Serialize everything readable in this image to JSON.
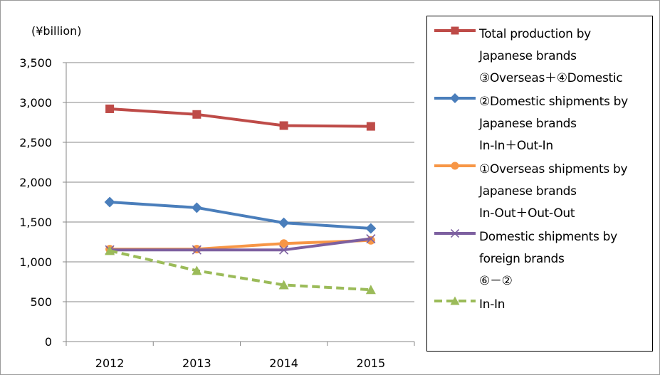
{
  "chart_data": {
    "type": "line",
    "unit_label": "(¥billion)",
    "categories": [
      "2012",
      "2013",
      "2014",
      "2015"
    ],
    "ylim": [
      0,
      3500
    ],
    "yticks": [
      0,
      500,
      1000,
      1500,
      2000,
      2500,
      3000,
      3500
    ],
    "ytick_labels": [
      "0",
      "500",
      "1,000",
      "1,500",
      "2,000",
      "2,500",
      "3,000",
      "3,500"
    ],
    "grid": true,
    "legend_position": "right",
    "series": [
      {
        "name": "Total production  by\nJapanese brands\n③Overseas＋④Domestic",
        "values": [
          2920,
          2850,
          2710,
          2700
        ],
        "color": "#be4b48",
        "marker": "square",
        "dashed": false
      },
      {
        "name": "②Domestic shipments by\nJapanese brands\nIn-In＋Out-In",
        "values": [
          1750,
          1680,
          1490,
          1420
        ],
        "color": "#4a7ebb",
        "marker": "diamond",
        "dashed": false
      },
      {
        "name": "①Overseas shipments by\nJapanese brands\nIn-Out＋Out-Out",
        "values": [
          1160,
          1160,
          1230,
          1270
        ],
        "color": "#f79646",
        "marker": "circle",
        "dashed": false
      },
      {
        "name": "Domestic shipments by\nforeign brands\n⑥－②",
        "values": [
          1150,
          1150,
          1150,
          1290
        ],
        "color": "#7d60a0",
        "marker": "x",
        "dashed": false
      },
      {
        "name": "In-In",
        "values": [
          1140,
          890,
          710,
          650
        ],
        "color": "#9bbb59",
        "marker": "triangle",
        "dashed": true
      }
    ]
  }
}
